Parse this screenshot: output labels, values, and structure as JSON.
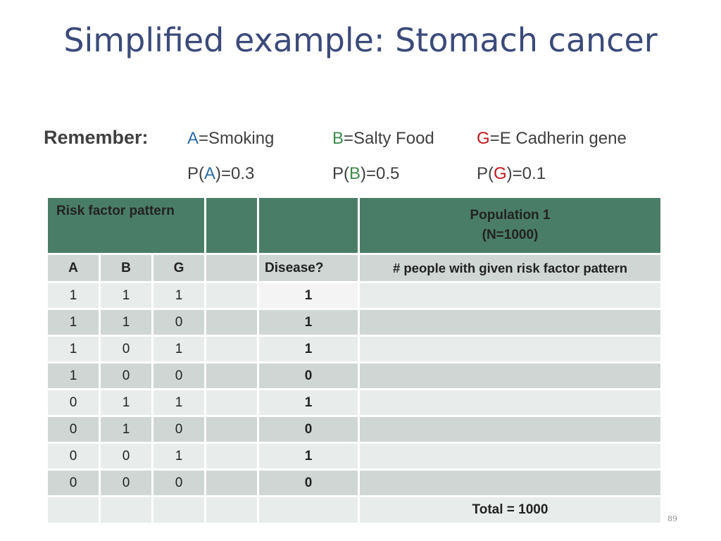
{
  "title": "Simplified example: Stomach cancer",
  "remember": {
    "label": "Remember:",
    "defs": [
      {
        "letter": "A",
        "rest": "=Smoking",
        "color": "#2e6da4"
      },
      {
        "letter": "B",
        "rest": "=Salty Food",
        "color": "#3a8a4a"
      },
      {
        "letter": "G",
        "rest": "=E Cadherin gene",
        "color": "#c0181e"
      }
    ],
    "probs": [
      {
        "pre": "P(",
        "letter": "A",
        "post": ")=0.3"
      },
      {
        "pre": "P(",
        "letter": "B",
        "post": ")=0.5"
      },
      {
        "pre": "P(",
        "letter": "G",
        "post": ")=0.1"
      }
    ]
  },
  "table": {
    "header": {
      "risk_factor_pattern": "Risk factor pattern",
      "population_line1": "Population 1",
      "population_line2": "(N=1000)"
    },
    "columns": {
      "a": "A",
      "b": "B",
      "g": "G",
      "disease": "Disease?",
      "people": "# people with given risk factor pattern"
    },
    "rows": [
      {
        "a": "1",
        "b": "1",
        "g": "1",
        "disease": "1"
      },
      {
        "a": "1",
        "b": "1",
        "g": "0",
        "disease": "1"
      },
      {
        "a": "1",
        "b": "0",
        "g": "1",
        "disease": "1"
      },
      {
        "a": "1",
        "b": "0",
        "g": "0",
        "disease": "0"
      },
      {
        "a": "0",
        "b": "1",
        "g": "1",
        "disease": "1"
      },
      {
        "a": "0",
        "b": "1",
        "g": "0",
        "disease": "0"
      },
      {
        "a": "0",
        "b": "0",
        "g": "1",
        "disease": "1"
      },
      {
        "a": "0",
        "b": "0",
        "g": "0",
        "disease": "0"
      }
    ],
    "total": "Total = 1000"
  },
  "page_number": "89"
}
